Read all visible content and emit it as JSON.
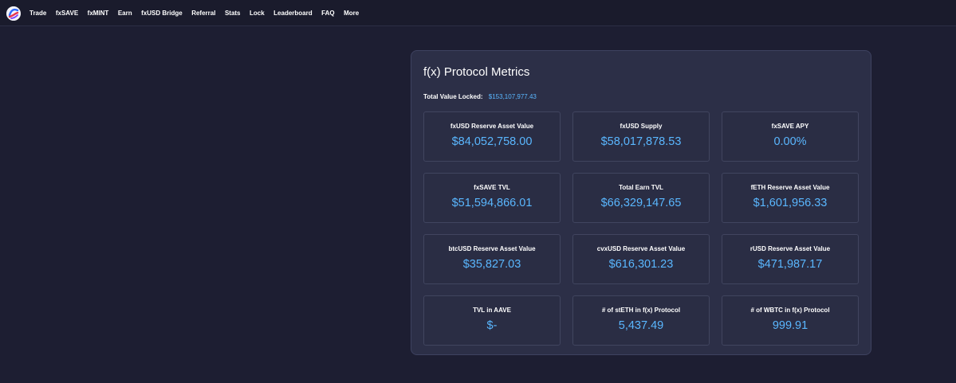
{
  "nav": {
    "logo_icon": "fx-protocol-logo-icon",
    "items": [
      {
        "label": "Trade"
      },
      {
        "label": "fxSAVE"
      },
      {
        "label": "fxMINT"
      },
      {
        "label": "Earn"
      },
      {
        "label": "fxUSD Bridge"
      },
      {
        "label": "Referral"
      },
      {
        "label": "Stats"
      },
      {
        "label": "Lock"
      },
      {
        "label": "Leaderboard"
      },
      {
        "label": "FAQ"
      },
      {
        "label": "More"
      }
    ]
  },
  "metrics_card": {
    "title": "f(x) Protocol Metrics",
    "tvl_label": "Total Value Locked:",
    "tvl_value": "$153,107,977.43",
    "items": [
      {
        "label": "fxUSD Reserve Asset Value",
        "value": "$84,052,758.00"
      },
      {
        "label": "fxUSD Supply",
        "value": "$58,017,878.53"
      },
      {
        "label": "fxSAVE APY",
        "value": "0.00%"
      },
      {
        "label": "fxSAVE TVL",
        "value": "$51,594,866.01"
      },
      {
        "label": "Total Earn TVL",
        "value": "$66,329,147.65"
      },
      {
        "label": "fETH Reserve Asset Value",
        "value": "$1,601,956.33"
      },
      {
        "label": "btcUSD Reserve Asset Value",
        "value": "$35,827.03"
      },
      {
        "label": "cvxUSD Reserve Asset Value",
        "value": "$616,301.23"
      },
      {
        "label": "rUSD Reserve Asset Value",
        "value": "$471,987.17"
      },
      {
        "label": "TVL in AAVE",
        "value": "$-"
      },
      {
        "label": "# of stETH in f(x) Protocol",
        "value": "5,437.49"
      },
      {
        "label": "# of WBTC in f(x) Protocol",
        "value": "999.91"
      }
    ]
  },
  "colors": {
    "page_bg": "#1d1e32",
    "card_bg": "#2c2f47",
    "accent": "#5ab7ff"
  }
}
